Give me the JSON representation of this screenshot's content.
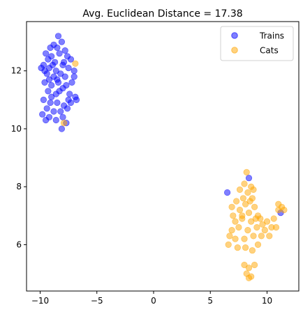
{
  "chart_data": {
    "type": "scatter",
    "title": "Avg. Euclidean Distance = 17.38",
    "xlabel": "",
    "ylabel": "",
    "xlim": [
      -11.2,
      12.8
    ],
    "ylim": [
      4.4,
      13.7
    ],
    "xticks": [
      -10,
      -5,
      0,
      5,
      10
    ],
    "yticks": [
      6,
      8,
      10,
      12
    ],
    "grid": false,
    "legend_position": "top-right",
    "series": [
      {
        "name": "Trains",
        "color": "#0000ff",
        "points": [
          [
            -8.4,
            13.2
          ],
          [
            -8.1,
            13.0
          ],
          [
            -8.8,
            12.9
          ],
          [
            -9.1,
            12.8
          ],
          [
            -8.5,
            12.8
          ],
          [
            -7.8,
            12.7
          ],
          [
            -9.5,
            12.6
          ],
          [
            -9.0,
            12.5
          ],
          [
            -8.3,
            12.6
          ],
          [
            -7.6,
            12.5
          ],
          [
            -9.3,
            12.4
          ],
          [
            -8.7,
            12.3
          ],
          [
            -7.3,
            12.4
          ],
          [
            -9.7,
            12.2
          ],
          [
            -9.9,
            12.1
          ],
          [
            -9.2,
            12.1
          ],
          [
            -8.6,
            12.0
          ],
          [
            -8.0,
            12.2
          ],
          [
            -7.5,
            12.1
          ],
          [
            -7.0,
            12.0
          ],
          [
            -9.4,
            11.9
          ],
          [
            -8.8,
            11.8
          ],
          [
            -8.2,
            11.9
          ],
          [
            -7.8,
            11.8
          ],
          [
            -9.6,
            11.6
          ],
          [
            -9.0,
            11.5
          ],
          [
            -8.4,
            11.6
          ],
          [
            -7.7,
            11.5
          ],
          [
            -7.2,
            11.6
          ],
          [
            -9.3,
            11.3
          ],
          [
            -8.6,
            11.2
          ],
          [
            -8.0,
            11.4
          ],
          [
            -7.4,
            11.2
          ],
          [
            -6.9,
            11.1
          ],
          [
            -9.7,
            11.0
          ],
          [
            -9.1,
            10.9
          ],
          [
            -8.5,
            10.9
          ],
          [
            -7.9,
            10.8
          ],
          [
            -7.3,
            10.9
          ],
          [
            -6.8,
            11.0
          ],
          [
            -9.4,
            10.7
          ],
          [
            -8.8,
            10.6
          ],
          [
            -8.2,
            10.6
          ],
          [
            -7.6,
            10.7
          ],
          [
            -9.8,
            10.5
          ],
          [
            -9.2,
            10.4
          ],
          [
            -8.6,
            10.3
          ],
          [
            -8.0,
            10.4
          ],
          [
            -9.5,
            10.3
          ],
          [
            -7.7,
            10.2
          ],
          [
            -8.1,
            10.0
          ],
          [
            -9.0,
            11.1
          ],
          [
            -8.3,
            11.3
          ],
          [
            -7.5,
            11.0
          ],
          [
            -9.6,
            12.0
          ],
          [
            -8.9,
            12.2
          ],
          [
            -7.9,
            12.3
          ],
          [
            -8.5,
            11.7
          ],
          [
            -7.0,
            11.8
          ],
          [
            -9.2,
            11.7
          ],
          [
            6.5,
            7.8
          ],
          [
            8.4,
            8.3
          ],
          [
            11.2,
            7.1
          ]
        ]
      },
      {
        "name": "Cats",
        "color": "#ffa500",
        "points": [
          [
            -6.9,
            12.25
          ],
          [
            -7.9,
            10.2
          ],
          [
            8.2,
            8.5
          ],
          [
            8.0,
            8.1
          ],
          [
            8.6,
            8.0
          ],
          [
            7.6,
            7.9
          ],
          [
            8.3,
            7.8
          ],
          [
            7.9,
            7.6
          ],
          [
            8.7,
            7.6
          ],
          [
            7.3,
            7.5
          ],
          [
            8.1,
            7.4
          ],
          [
            8.9,
            7.3
          ],
          [
            6.9,
            7.3
          ],
          [
            7.6,
            7.2
          ],
          [
            8.4,
            7.1
          ],
          [
            9.2,
            7.0
          ],
          [
            7.0,
            7.0
          ],
          [
            7.8,
            6.9
          ],
          [
            8.6,
            6.8
          ],
          [
            9.4,
            6.9
          ],
          [
            10.0,
            6.8
          ],
          [
            10.6,
            6.9
          ],
          [
            11.0,
            7.2
          ],
          [
            11.3,
            7.3
          ],
          [
            11.5,
            7.2
          ],
          [
            10.4,
            6.6
          ],
          [
            9.8,
            6.5
          ],
          [
            9.1,
            6.6
          ],
          [
            8.3,
            6.5
          ],
          [
            7.5,
            6.6
          ],
          [
            6.9,
            6.5
          ],
          [
            6.7,
            6.3
          ],
          [
            7.2,
            6.2
          ],
          [
            8.0,
            6.2
          ],
          [
            8.8,
            6.3
          ],
          [
            9.5,
            6.3
          ],
          [
            10.2,
            6.3
          ],
          [
            10.8,
            6.6
          ],
          [
            6.6,
            6.0
          ],
          [
            7.4,
            5.9
          ],
          [
            8.1,
            5.9
          ],
          [
            8.7,
            5.8
          ],
          [
            9.2,
            6.0
          ],
          [
            8.0,
            5.3
          ],
          [
            8.4,
            5.2
          ],
          [
            8.9,
            5.3
          ],
          [
            8.2,
            5.0
          ],
          [
            8.6,
            4.9
          ],
          [
            8.4,
            4.85
          ],
          [
            7.8,
            7.0
          ],
          [
            8.5,
            7.5
          ],
          [
            9.0,
            6.9
          ],
          [
            7.2,
            6.8
          ],
          [
            11.0,
            7.4
          ],
          [
            9.6,
            6.7
          ],
          [
            8.8,
            7.9
          ]
        ]
      }
    ]
  }
}
